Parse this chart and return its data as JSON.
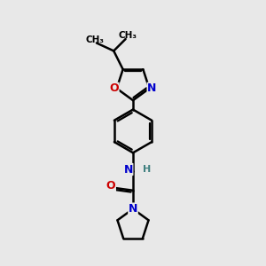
{
  "background_color": "#e8e8e8",
  "bond_color": "#000000",
  "bond_width": 1.8,
  "atom_colors": {
    "O": "#cc0000",
    "N": "#0000cc",
    "H": "#408080",
    "C": "#000000"
  },
  "font_size": 9,
  "fig_size": [
    3.0,
    3.0
  ],
  "dpi": 100
}
